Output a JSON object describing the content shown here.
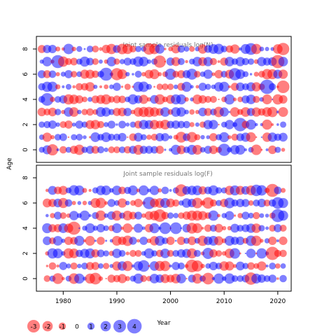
{
  "chart_data": [
    {
      "type": "scatter",
      "subtype": "bubble",
      "title": "Joint sample residuals log(N)",
      "xlim": [
        1975,
        2022.5
      ],
      "ylim": [
        -1,
        9
      ],
      "yticks": [
        0,
        2,
        4,
        6,
        8
      ],
      "years": [
        1976,
        2021
      ],
      "ages": [
        0,
        8
      ],
      "positive_color": "#0000ff80",
      "negative_color": "#ff000080",
      "bubble_scale": "radius proportional to sqrt(|residual|)",
      "sample_residuals": [
        {
          "year": 1977,
          "age": 8,
          "value": 1.3
        },
        {
          "year": 1977,
          "age": 6,
          "value": -1.2
        },
        {
          "year": 1977,
          "age": 5,
          "value": 2.0
        },
        {
          "year": 1977,
          "age": 4,
          "value": 3.0
        },
        {
          "year": 1978,
          "age": 0,
          "value": -2.4
        },
        {
          "year": 1979,
          "age": 7,
          "value": 3.2
        },
        {
          "year": 1990,
          "age": 6,
          "value": -2.8
        },
        {
          "year": 1996,
          "age": 8,
          "value": -2.5
        },
        {
          "year": 2000,
          "age": 6,
          "value": 2.4
        },
        {
          "year": 2013,
          "age": 2,
          "value": 3.4
        },
        {
          "year": 2018,
          "age": 5,
          "value": 3.9
        },
        {
          "year": 2021,
          "age": 5,
          "value": -3.0
        }
      ]
    },
    {
      "type": "scatter",
      "subtype": "bubble",
      "title": "Joint sample residuals log(F)",
      "xlim": [
        1975,
        2022.5
      ],
      "ylim": [
        -1,
        9
      ],
      "xticks": [
        1980,
        1990,
        2000,
        2010,
        2020
      ],
      "yticks": [
        0,
        2,
        4,
        6,
        8
      ],
      "years": [
        1977,
        2021
      ],
      "ages": [
        0,
        7
      ],
      "positive_color": "#0000ff80",
      "negative_color": "#ff000080",
      "bubble_scale": "radius proportional to sqrt(|residual|)",
      "sample_residuals": [
        {
          "year": 1999,
          "age": 4,
          "value": 2.6
        },
        {
          "year": 2002,
          "age": 7,
          "value": -2.8
        },
        {
          "year": 2007,
          "age": 0,
          "value": -2.6
        },
        {
          "year": 2015,
          "age": 0,
          "value": -2.9
        },
        {
          "year": 2016,
          "age": 7,
          "value": 2.5
        },
        {
          "year": 2019,
          "age": 7,
          "value": -3.2
        },
        {
          "year": 2020,
          "age": 6,
          "value": 2.6
        }
      ]
    }
  ],
  "axes": {
    "x_label": "Year",
    "y_label": "Age"
  },
  "legend": {
    "title": "",
    "items": [
      {
        "label": "-3",
        "value": -3
      },
      {
        "label": "-2",
        "value": -2
      },
      {
        "label": "-1",
        "value": -1
      },
      {
        "label": "0",
        "value": 0
      },
      {
        "label": "1",
        "value": 1
      },
      {
        "label": "2",
        "value": 2
      },
      {
        "label": "3",
        "value": 3
      },
      {
        "label": "4",
        "value": 4
      }
    ]
  }
}
